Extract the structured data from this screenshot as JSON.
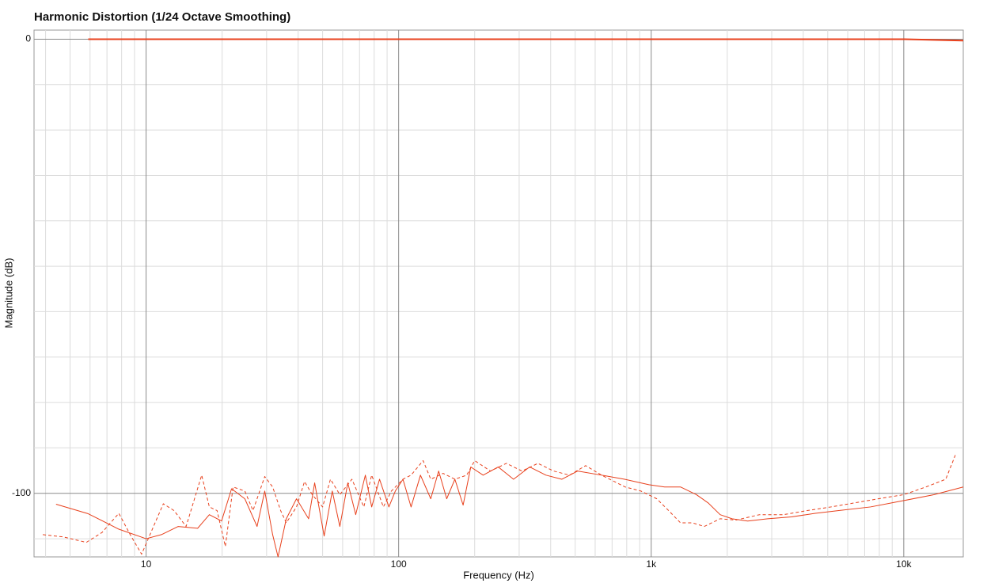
{
  "chart_data": {
    "type": "line",
    "title": "Harmonic Distortion (1/24 Octave Smoothing)",
    "xlabel": "Frequency (Hz)",
    "ylabel": "Magnitude (dB)",
    "xscale": "log",
    "grid": true,
    "xlim": [
      3.6,
      17200
    ],
    "ylim": [
      -114,
      2
    ],
    "xticks": [
      10,
      100,
      {
        "value": 1000,
        "label": "1k"
      },
      {
        "value": 10000,
        "label": "10k"
      }
    ],
    "yticks": [
      0,
      -100
    ],
    "yminorticks": [
      -110,
      -90,
      -80,
      -70,
      -60,
      -50,
      -40,
      -30,
      -20,
      -10
    ],
    "series": [
      {
        "color": "#e8401c",
        "style": "solid",
        "width": 2,
        "x": [
          5.9,
          100,
          1000,
          10000,
          17200
        ],
        "values": [
          0,
          0,
          0,
          0,
          -0.3
        ]
      },
      {
        "color": "#e8401c",
        "style": "solid",
        "width": 1,
        "x": [
          4.4,
          5.9,
          7.8,
          10,
          11.5,
          13.4,
          16,
          17.8,
          19.9,
          21.8,
          24.6,
          27.5,
          29.5,
          31.7,
          33.3,
          35.9,
          39.4,
          44,
          46.5,
          50.7,
          54.6,
          58.5,
          62.9,
          67.6,
          73.8,
          78.2,
          84,
          91.5,
          97,
          104,
          112,
          122,
          134,
          144,
          155,
          167,
          180,
          193,
          216,
          248,
          285,
          330,
          383,
          443,
          511,
          636,
          785,
          979,
          1130,
          1306,
          1510,
          1680,
          1875,
          2090,
          2410,
          2890,
          3590,
          4460,
          5530,
          7380,
          10000,
          13150,
          17200
        ],
        "values": [
          -102.4,
          -104.5,
          -107.9,
          -110,
          -109.1,
          -107.3,
          -107.7,
          -104.7,
          -106.1,
          -99,
          -101.2,
          -107.3,
          -99.5,
          -109.1,
          -114,
          -105.6,
          -101.2,
          -105.6,
          -97.7,
          -109.4,
          -99.5,
          -107.3,
          -97.7,
          -104.7,
          -96,
          -103,
          -96.9,
          -103,
          -99.5,
          -96.9,
          -103,
          -96,
          -101.2,
          -95.1,
          -101.2,
          -96.9,
          -102.6,
          -94.2,
          -96,
          -94.2,
          -96.9,
          -94.2,
          -96,
          -96.9,
          -95.1,
          -96,
          -96.9,
          -98.1,
          -98.6,
          -98.6,
          -100.3,
          -102.1,
          -104.7,
          -105.6,
          -106.1,
          -105.6,
          -105.2,
          -104.4,
          -103.8,
          -103,
          -101.6,
          -100.3,
          -98.6
        ]
      },
      {
        "color": "#e8401c",
        "style": "dashed",
        "width": 1,
        "x": [
          3.9,
          4.7,
          5.8,
          6.7,
          7.8,
          8.65,
          9.6,
          10.7,
          11.7,
          12.9,
          14.4,
          16.6,
          17.8,
          19.1,
          20.6,
          22.1,
          24.6,
          26.5,
          29.5,
          31.7,
          34.1,
          35.9,
          39.4,
          42.4,
          45.5,
          50,
          53.7,
          58.5,
          65.3,
          72.8,
          78.2,
          87,
          93.6,
          104,
          112,
          125,
          134,
          150,
          167,
          186,
          200,
          231,
          267,
          308,
          356,
          411,
          475,
          550,
          636,
          788,
          910,
          1052,
          1172,
          1306,
          1456,
          1622,
          1875,
          2163,
          2686,
          3340,
          4150,
          5150,
          6390,
          7940,
          10000,
          12240,
          14660,
          16000
        ],
        "values": [
          -109.1,
          -109.6,
          -110.8,
          -108.6,
          -104.4,
          -109.1,
          -113.4,
          -107.3,
          -102.3,
          -103.8,
          -107.3,
          -96,
          -103,
          -103.8,
          -111.7,
          -98.6,
          -99.5,
          -103.8,
          -96.3,
          -98.6,
          -103.8,
          -106.5,
          -103,
          -97.4,
          -100.3,
          -103,
          -96.9,
          -100.3,
          -96.9,
          -103,
          -96,
          -103,
          -99.5,
          -96.9,
          -96,
          -92.8,
          -96.9,
          -95.6,
          -96.9,
          -96,
          -92.8,
          -95.1,
          -93.4,
          -95.1,
          -93.4,
          -95.1,
          -96,
          -93.9,
          -96,
          -98.6,
          -99.5,
          -101.2,
          -103.8,
          -106.5,
          -106.5,
          -107.3,
          -105.6,
          -105.9,
          -104.7,
          -104.7,
          -103.8,
          -103,
          -102.1,
          -101.2,
          -100.3,
          -98.6,
          -96.9,
          -91.6
        ]
      }
    ]
  }
}
